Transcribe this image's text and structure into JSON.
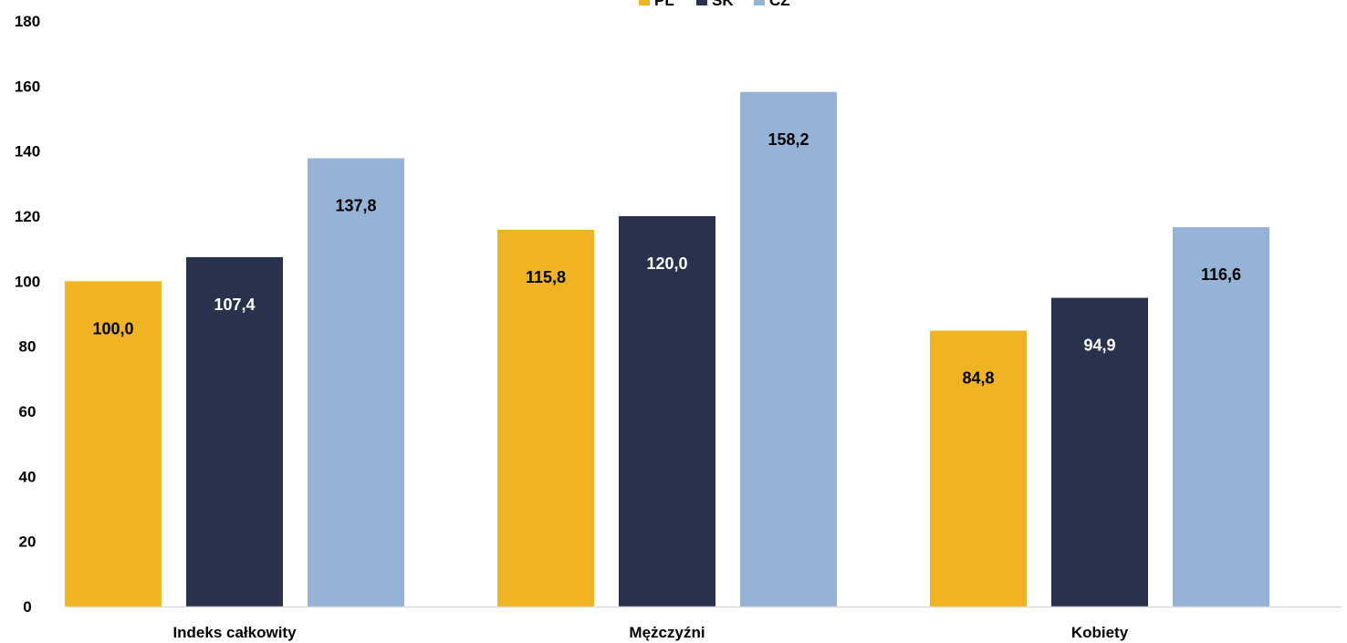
{
  "chart_data": {
    "type": "bar",
    "title": "",
    "xlabel": "",
    "ylabel": "",
    "categories": [
      "Indeks całkowity",
      "Mężczyźni",
      "Kobiety"
    ],
    "series": [
      {
        "name": "PL",
        "color": "#F0B323",
        "label_color": "#000000",
        "values": [
          100.0,
          115.8,
          84.8
        ],
        "labels": [
          "100,0",
          "115,8",
          "84,8"
        ]
      },
      {
        "name": "SK",
        "color": "#28324C",
        "label_color": "#FFFFFF",
        "values": [
          107.4,
          120.0,
          94.9
        ],
        "labels": [
          "107,4",
          "120,0",
          "94,9"
        ]
      },
      {
        "name": "CZ",
        "color": "#95B3D7",
        "label_color": "#000000",
        "values": [
          137.8,
          158.2,
          116.6
        ],
        "labels": [
          "137,8",
          "158,2",
          "116,6"
        ]
      }
    ],
    "ylim": [
      0,
      180
    ],
    "yticks": [
      0,
      20,
      40,
      60,
      80,
      100,
      120,
      140,
      160,
      180
    ],
    "ytick_labels": [
      "0",
      "20",
      "40",
      "60",
      "80",
      "100",
      "120",
      "140",
      "160",
      "180"
    ],
    "grid": false,
    "legend_position": "top-center",
    "axis_line_color": "#D9D9D9"
  }
}
